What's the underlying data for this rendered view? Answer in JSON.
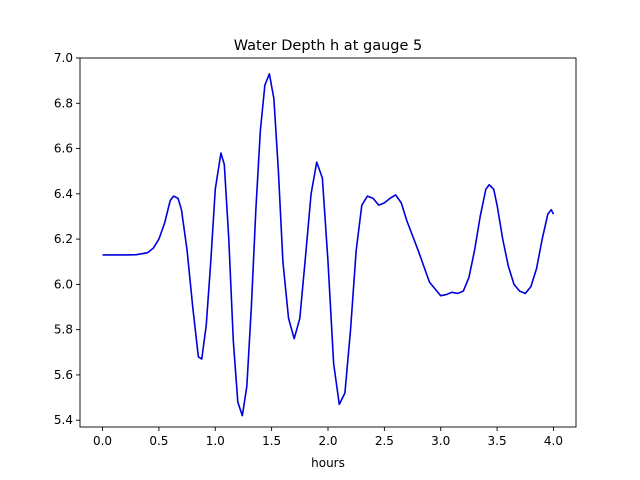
{
  "chart_data": {
    "type": "line",
    "title": "Water Depth h at gauge 5",
    "xlabel": "hours",
    "ylabel": "",
    "xlim": [
      -0.2,
      4.2
    ],
    "ylim": [
      5.37,
      7.0
    ],
    "x_ticks": [
      0.0,
      0.5,
      1.0,
      1.5,
      2.0,
      2.5,
      3.0,
      3.5,
      4.0
    ],
    "x_tick_labels": [
      "0.0",
      "0.5",
      "1.0",
      "1.5",
      "2.0",
      "2.5",
      "3.0",
      "3.5",
      "4.0"
    ],
    "y_ticks": [
      5.4,
      5.6,
      5.8,
      6.0,
      6.2,
      6.4,
      6.6,
      6.8,
      7.0
    ],
    "y_tick_labels": [
      "5.4",
      "5.6",
      "5.8",
      "6.0",
      "6.2",
      "6.4",
      "6.6",
      "6.8",
      "7.0"
    ],
    "grid": false,
    "series": [
      {
        "name": "",
        "color": "#0000dd",
        "points": [
          [
            0.0,
            6.13
          ],
          [
            0.1,
            6.13
          ],
          [
            0.2,
            6.13
          ],
          [
            0.3,
            6.131
          ],
          [
            0.4,
            6.14
          ],
          [
            0.45,
            6.16
          ],
          [
            0.5,
            6.2
          ],
          [
            0.55,
            6.27
          ],
          [
            0.6,
            6.37
          ],
          [
            0.63,
            6.39
          ],
          [
            0.67,
            6.38
          ],
          [
            0.7,
            6.33
          ],
          [
            0.75,
            6.15
          ],
          [
            0.8,
            5.9
          ],
          [
            0.85,
            5.68
          ],
          [
            0.88,
            5.67
          ],
          [
            0.92,
            5.82
          ],
          [
            0.96,
            6.1
          ],
          [
            1.0,
            6.42
          ],
          [
            1.05,
            6.58
          ],
          [
            1.08,
            6.53
          ],
          [
            1.12,
            6.2
          ],
          [
            1.16,
            5.75
          ],
          [
            1.2,
            5.48
          ],
          [
            1.24,
            5.42
          ],
          [
            1.28,
            5.55
          ],
          [
            1.32,
            5.9
          ],
          [
            1.36,
            6.33
          ],
          [
            1.4,
            6.68
          ],
          [
            1.44,
            6.88
          ],
          [
            1.48,
            6.93
          ],
          [
            1.52,
            6.82
          ],
          [
            1.56,
            6.5
          ],
          [
            1.6,
            6.1
          ],
          [
            1.65,
            5.85
          ],
          [
            1.7,
            5.76
          ],
          [
            1.75,
            5.85
          ],
          [
            1.8,
            6.12
          ],
          [
            1.85,
            6.4
          ],
          [
            1.9,
            6.54
          ],
          [
            1.95,
            6.47
          ],
          [
            2.0,
            6.1
          ],
          [
            2.05,
            5.65
          ],
          [
            2.1,
            5.47
          ],
          [
            2.15,
            5.52
          ],
          [
            2.2,
            5.8
          ],
          [
            2.25,
            6.15
          ],
          [
            2.3,
            6.35
          ],
          [
            2.35,
            6.39
          ],
          [
            2.4,
            6.38
          ],
          [
            2.45,
            6.35
          ],
          [
            2.5,
            6.36
          ],
          [
            2.55,
            6.38
          ],
          [
            2.6,
            6.395
          ],
          [
            2.65,
            6.36
          ],
          [
            2.7,
            6.28
          ],
          [
            2.8,
            6.15
          ],
          [
            2.9,
            6.01
          ],
          [
            3.0,
            5.95
          ],
          [
            3.05,
            5.955
          ],
          [
            3.1,
            5.965
          ],
          [
            3.15,
            5.96
          ],
          [
            3.2,
            5.97
          ],
          [
            3.25,
            6.03
          ],
          [
            3.3,
            6.15
          ],
          [
            3.35,
            6.3
          ],
          [
            3.4,
            6.42
          ],
          [
            3.43,
            6.44
          ],
          [
            3.47,
            6.42
          ],
          [
            3.5,
            6.35
          ],
          [
            3.55,
            6.2
          ],
          [
            3.6,
            6.08
          ],
          [
            3.65,
            6.0
          ],
          [
            3.7,
            5.97
          ],
          [
            3.75,
            5.96
          ],
          [
            3.8,
            5.99
          ],
          [
            3.85,
            6.07
          ],
          [
            3.9,
            6.2
          ],
          [
            3.95,
            6.31
          ],
          [
            3.98,
            6.33
          ],
          [
            4.0,
            6.31
          ]
        ]
      }
    ]
  }
}
